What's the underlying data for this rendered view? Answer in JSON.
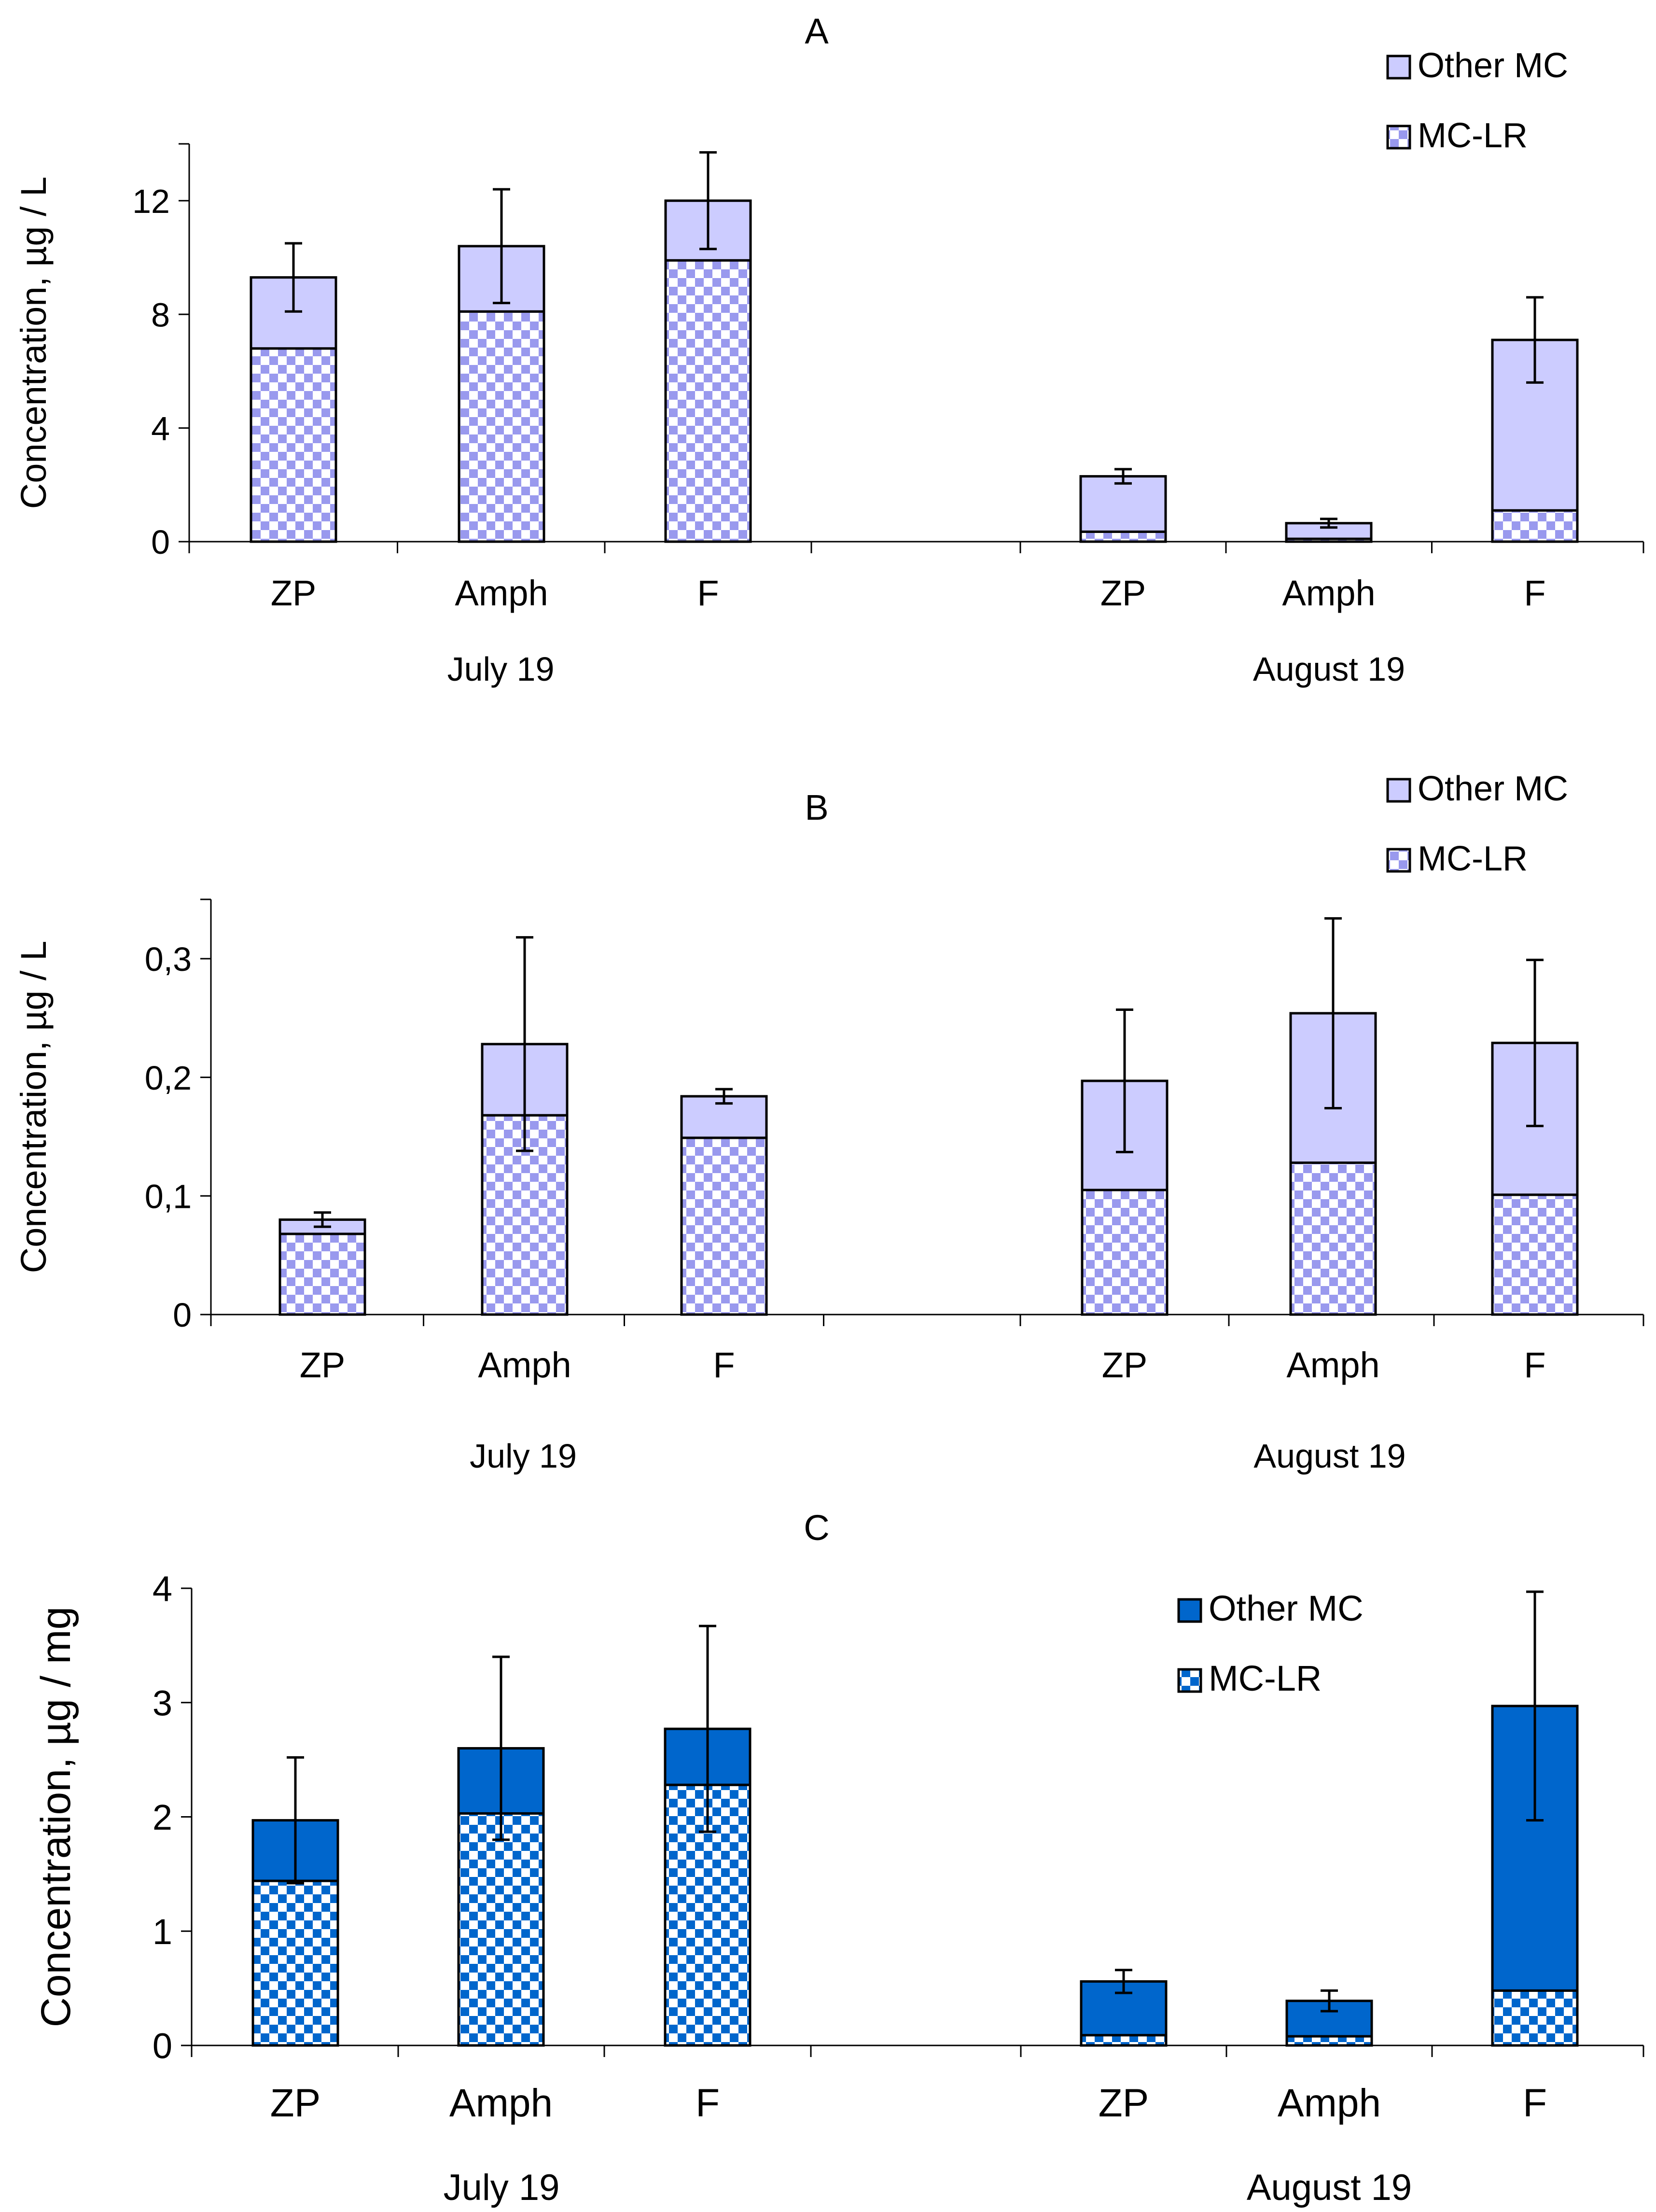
{
  "chart_data": [
    {
      "panel": "A",
      "type": "bar",
      "stacked": true,
      "title": "A",
      "ylabel": "Concentration, µg / L",
      "ylim": [
        0,
        14
      ],
      "yticks": [
        0,
        4,
        8,
        12
      ],
      "ytick_labels": [
        "0",
        "4",
        "8",
        "12"
      ],
      "categories": [
        "ZP",
        "Amph",
        "F",
        "ZP",
        "Amph",
        "F"
      ],
      "groups": [
        {
          "label": "July 19",
          "categories": [
            "ZP",
            "Amph",
            "F"
          ]
        },
        {
          "label": "August 19",
          "categories": [
            "ZP",
            "Amph",
            "F"
          ]
        }
      ],
      "series": [
        {
          "name": "MC-LR",
          "pattern": "checker",
          "color": "#9999ee",
          "values": [
            6.8,
            8.1,
            9.9,
            0.35,
            0.1,
            1.1
          ]
        },
        {
          "name": "Other MC",
          "pattern": "solid",
          "color": "#ccccff",
          "values": [
            2.5,
            2.3,
            2.1,
            1.95,
            0.55,
            6.0
          ]
        }
      ],
      "error_bars": [
        1.2,
        2.0,
        1.7,
        0.25,
        0.15,
        1.5
      ],
      "legend": {
        "position": "top-right",
        "entries": [
          "Other MC",
          "MC-LR"
        ]
      }
    },
    {
      "panel": "B",
      "type": "bar",
      "stacked": true,
      "title": "B",
      "ylabel": "Concentration, µg / L",
      "ylim": [
        0,
        0.35
      ],
      "yticks": [
        0,
        0.1,
        0.2,
        0.3
      ],
      "ytick_labels": [
        "0",
        "0,1",
        "0,2",
        "0,3"
      ],
      "categories": [
        "ZP",
        "Amph",
        "F",
        "ZP",
        "Amph",
        "F"
      ],
      "groups": [
        {
          "label": "July 19",
          "categories": [
            "ZP",
            "Amph",
            "F"
          ]
        },
        {
          "label": "August 19",
          "categories": [
            "ZP",
            "Amph",
            "F"
          ]
        }
      ],
      "series": [
        {
          "name": "MC-LR",
          "pattern": "checker",
          "color": "#9999ee",
          "values": [
            0.068,
            0.168,
            0.149,
            0.105,
            0.128,
            0.101
          ]
        },
        {
          "name": "Other MC",
          "pattern": "solid",
          "color": "#ccccff",
          "values": [
            0.012,
            0.06,
            0.035,
            0.092,
            0.126,
            0.128
          ]
        }
      ],
      "error_bars": [
        0.006,
        0.09,
        0.006,
        0.06,
        0.08,
        0.07
      ],
      "legend": {
        "position": "top-right",
        "entries": [
          "Other MC",
          "MC-LR"
        ]
      }
    },
    {
      "panel": "C",
      "type": "bar",
      "stacked": true,
      "title": "C",
      "ylabel": "Concentration, µg / mg",
      "ylim": [
        0,
        4
      ],
      "yticks": [
        0,
        1,
        2,
        3,
        4
      ],
      "ytick_labels": [
        "0",
        "1",
        "2",
        "3",
        "4"
      ],
      "categories": [
        "ZP",
        "Amph",
        "F",
        "ZP",
        "Amph",
        "F"
      ],
      "groups": [
        {
          "label": "July 19",
          "categories": [
            "ZP",
            "Amph",
            "F"
          ]
        },
        {
          "label": "August 19",
          "categories": [
            "ZP",
            "Amph",
            "F"
          ]
        }
      ],
      "series": [
        {
          "name": "MC-LR",
          "pattern": "checker",
          "color": "#0066cc",
          "values": [
            1.44,
            2.03,
            2.28,
            0.09,
            0.08,
            0.48
          ]
        },
        {
          "name": "Other MC",
          "pattern": "solid",
          "color": "#0066cc",
          "values": [
            0.53,
            0.57,
            0.49,
            0.47,
            0.31,
            2.49
          ]
        }
      ],
      "error_bars": [
        0.55,
        0.8,
        0.9,
        0.1,
        0.09,
        1.0
      ],
      "legend": {
        "position": "top-right",
        "entries": [
          "Other MC",
          "MC-LR"
        ]
      }
    }
  ]
}
